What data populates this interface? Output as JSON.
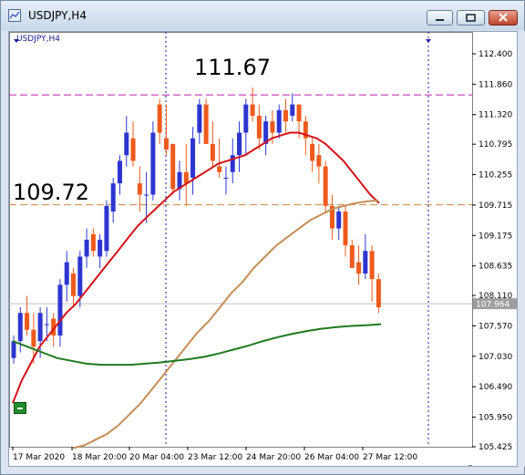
{
  "window": {
    "title": "USDJPY,H4",
    "buttons": {
      "minimize": "minimize",
      "maximize": "maximize",
      "close": "close"
    }
  },
  "chart_data": {
    "type": "candlestick",
    "symbol_label": "USDJPY,H4",
    "price_ticks": [
      "112.400",
      "111.860",
      "111.320",
      "110.795",
      "110.255",
      "109.715",
      "109.175",
      "108.635",
      "108.110",
      "107.570",
      "107.030",
      "106.490",
      "105.950",
      "105.425"
    ],
    "time_ticks": [
      "17 Mar 2020",
      "18 Mar 20:00",
      "20 Mar 04:00",
      "23 Mar 12:00",
      "24 Mar 20:00",
      "26 Mar 04:00",
      "27 Mar 12:00"
    ],
    "current_price": "107.964",
    "annotations": [
      {
        "text": "111.67",
        "price": 111.67,
        "color": "#c41dae",
        "style": "dashed"
      },
      {
        "text": "109.72",
        "price": 109.72,
        "color": "#c88a42",
        "style": "dashed"
      }
    ],
    "bull_color": "#2d35d1",
    "bear_color": "#ee5a1c",
    "candles": [
      [
        107.0,
        107.4,
        106.9,
        107.3
      ],
      [
        107.3,
        107.9,
        107.1,
        107.8
      ],
      [
        107.8,
        108.1,
        107.4,
        107.5
      ],
      [
        107.5,
        107.8,
        106.9,
        107.2
      ],
      [
        107.3,
        107.9,
        107.0,
        107.8
      ],
      [
        107.6,
        107.9,
        107.3,
        107.6
      ],
      [
        107.7,
        107.8,
        107.2,
        107.4
      ],
      [
        107.4,
        108.4,
        107.2,
        108.3
      ],
      [
        108.3,
        108.9,
        108.0,
        108.7
      ],
      [
        108.5,
        108.6,
        107.9,
        108.1
      ],
      [
        108.1,
        108.9,
        107.9,
        108.8
      ],
      [
        108.8,
        109.3,
        108.6,
        109.1
      ],
      [
        109.2,
        109.3,
        108.8,
        108.9
      ],
      [
        108.8,
        109.2,
        108.6,
        109.1
      ],
      [
        108.9,
        109.8,
        108.8,
        109.7
      ],
      [
        109.6,
        110.2,
        109.4,
        110.1
      ],
      [
        110.1,
        110.6,
        109.9,
        110.5
      ],
      [
        110.6,
        111.3,
        110.4,
        111.0
      ],
      [
        110.9,
        111.2,
        110.4,
        110.5
      ],
      [
        110.1,
        110.4,
        109.6,
        109.9
      ],
      [
        109.9,
        110.3,
        109.4,
        109.9
      ],
      [
        109.9,
        111.2,
        109.8,
        111.0
      ],
      [
        111.5,
        111.6,
        110.8,
        111.0
      ],
      [
        110.9,
        111.5,
        110.6,
        110.7
      ],
      [
        110.8,
        110.8,
        109.9,
        110.0
      ],
      [
        110.0,
        110.5,
        109.8,
        110.3
      ],
      [
        110.3,
        110.8,
        109.7,
        110.1
      ],
      [
        110.2,
        111.1,
        109.9,
        110.9
      ],
      [
        111.0,
        111.6,
        110.8,
        111.5
      ],
      [
        111.5,
        111.6,
        110.8,
        110.8
      ],
      [
        110.8,
        111.2,
        110.4,
        110.5
      ],
      [
        110.4,
        110.9,
        110.2,
        110.3
      ],
      [
        110.2,
        110.4,
        109.9,
        110.2
      ],
      [
        110.3,
        110.9,
        110.1,
        110.6
      ],
      [
        110.6,
        111.2,
        110.3,
        111.0
      ],
      [
        111.0,
        111.6,
        110.6,
        111.5
      ],
      [
        111.5,
        111.8,
        111.2,
        111.3
      ],
      [
        111.3,
        111.5,
        110.7,
        110.9
      ],
      [
        110.8,
        111.3,
        110.6,
        111.2
      ],
      [
        111.2,
        111.4,
        110.8,
        111.0
      ],
      [
        111.0,
        111.5,
        110.9,
        111.4
      ],
      [
        111.4,
        111.6,
        111.0,
        111.2
      ],
      [
        111.3,
        111.7,
        111.2,
        111.5
      ],
      [
        111.5,
        111.5,
        110.9,
        111.2
      ],
      [
        111.2,
        111.3,
        110.6,
        110.9
      ],
      [
        110.8,
        110.9,
        110.3,
        110.5
      ],
      [
        110.6,
        110.8,
        110.1,
        110.4
      ],
      [
        110.4,
        110.5,
        109.6,
        109.7
      ],
      [
        109.7,
        109.9,
        109.1,
        109.3
      ],
      [
        109.3,
        109.7,
        109.1,
        109.6
      ],
      [
        109.6,
        109.7,
        108.8,
        109.0
      ],
      [
        109.0,
        109.1,
        108.6,
        108.6
      ],
      [
        108.7,
        109.0,
        108.3,
        108.5
      ],
      [
        108.5,
        109.2,
        108.4,
        108.9
      ],
      [
        108.9,
        109.0,
        108.0,
        108.4
      ],
      [
        108.4,
        108.5,
        107.8,
        107.9
      ]
    ],
    "moving_averages": [
      {
        "color": "#d31218",
        "values": [
          106.2,
          106.6,
          106.9,
          107.2,
          107.4,
          107.6,
          107.8,
          107.95,
          108.15,
          108.35,
          108.55,
          108.75,
          108.95,
          109.15,
          109.35,
          109.5,
          109.65,
          109.8,
          109.95,
          110.05,
          110.15,
          110.25,
          110.35,
          110.45,
          110.5,
          110.55,
          110.6,
          110.7,
          110.8,
          110.9,
          110.95,
          111.0,
          111.0,
          110.95,
          110.9,
          110.8,
          110.65,
          110.5,
          110.3,
          110.1,
          109.9,
          109.75
        ]
      },
      {
        "color": "#c48d55",
        "values": [
          105.4,
          105.45,
          105.55,
          105.65,
          105.8,
          106.0,
          106.2,
          106.45,
          106.7,
          106.95,
          107.2,
          107.45,
          107.65,
          107.9,
          108.15,
          108.35,
          108.6,
          108.8,
          109.0,
          109.15,
          109.3,
          109.45,
          109.55,
          109.65,
          109.7,
          109.75,
          109.78,
          109.8
        ]
      },
      {
        "color": "#1e7a1e",
        "values": [
          107.3,
          107.2,
          107.1,
          107.0,
          106.95,
          106.9,
          106.88,
          106.88,
          106.88,
          106.9,
          106.92,
          106.95,
          106.98,
          107.02,
          107.08,
          107.15,
          107.22,
          107.3,
          107.37,
          107.43,
          107.48,
          107.52,
          107.55,
          107.57,
          107.58,
          107.6
        ]
      }
    ],
    "scroll_button": "+"
  }
}
